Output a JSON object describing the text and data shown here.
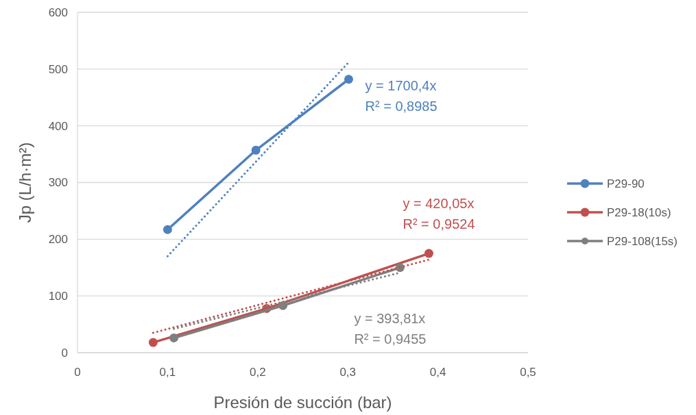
{
  "chart_data": {
    "type": "line",
    "xlabel": "Presión de succión (bar)",
    "ylabel": "Jp (L/h·m²)",
    "xlim": [
      0,
      0.5
    ],
    "xticks": [
      {
        "value": 0,
        "label": "0"
      },
      {
        "value": 0.1,
        "label": "0,1"
      },
      {
        "value": 0.2,
        "label": "0,2"
      },
      {
        "value": 0.3,
        "label": "0,3"
      },
      {
        "value": 0.4,
        "label": "0,4"
      },
      {
        "value": 0.5,
        "label": "0,5"
      }
    ],
    "ylim": [
      0,
      600
    ],
    "yticks": [
      0,
      100,
      200,
      300,
      400,
      500,
      600
    ],
    "grid": "y",
    "legend": "right",
    "marker": "circle",
    "line_style": "solid",
    "series": [
      {
        "name": "P29-90",
        "color": "#4f81bd",
        "x": [
          0.1,
          0.198,
          0.301
        ],
        "values": [
          217,
          357,
          482
        ]
      },
      {
        "name": "P29-18(10s)",
        "color": "#c0504d",
        "x": [
          0.084,
          0.21,
          0.39
        ],
        "values": [
          18,
          78,
          175
        ]
      },
      {
        "name": "P29-108(15s)",
        "color": "#7f7f7f",
        "x": [
          0.107,
          0.228,
          0.358
        ],
        "values": [
          26,
          83,
          150
        ]
      },
      {
        "type": "line",
        "color": "#4f81bd",
        "x": [
          0.1,
          0.301
        ],
        "values": [
          170,
          512
        ],
        "marker": "none",
        "line_style": "dotted"
      },
      {
        "type": "line",
        "color": "#c0504d",
        "x": [
          0.084,
          0.39
        ],
        "values": [
          35,
          164
        ],
        "marker": "none",
        "line_style": "dotted"
      },
      {
        "type": "line",
        "color": "#7f7f7f",
        "x": [
          0.107,
          0.358
        ],
        "values": [
          42,
          141
        ],
        "marker": "none",
        "line_style": "dotted"
      }
    ],
    "annotations": [
      "y = 1700,4x",
      "R² = 0,8985",
      "y = 420,05x",
      "R² = 0,9524",
      "y = 393,81x",
      "R² = 0,9455"
    ]
  }
}
